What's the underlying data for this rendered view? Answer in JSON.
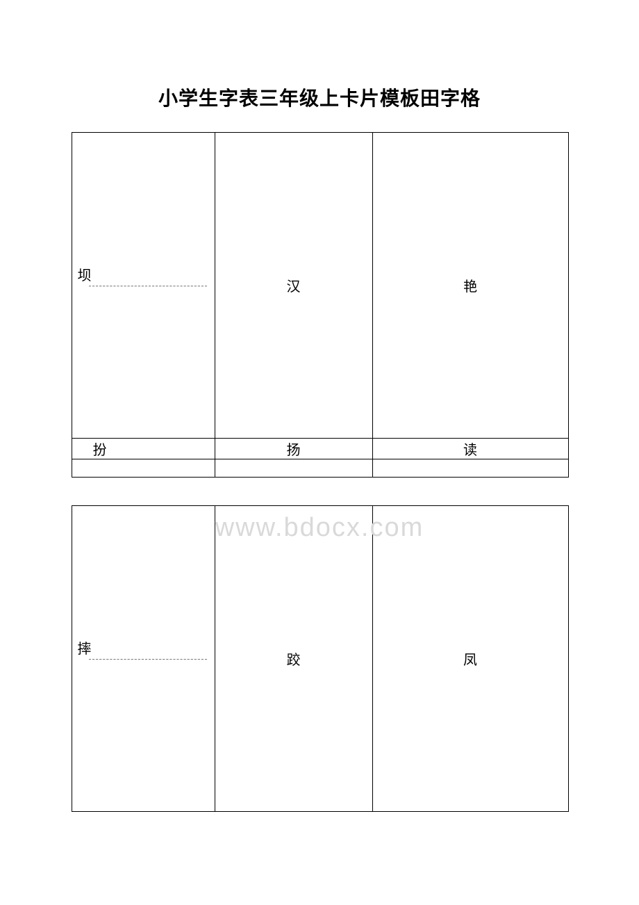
{
  "title": "小学生字表三年级上卡片模板田字格",
  "watermark": "www.bdocx.com",
  "table1": {
    "row1": {
      "c1_label": "坝",
      "c2": "汉",
      "c3": "艳"
    },
    "row2": {
      "c1": "扮",
      "c2": "扬",
      "c3": "读"
    }
  },
  "table2": {
    "row1": {
      "c1_label": "摔",
      "c2": "跤",
      "c3": "凤"
    }
  },
  "colors": {
    "text": "#000000",
    "border": "#000000",
    "dash": "#777777",
    "watermark": "#d9d9d9",
    "background": "#ffffff"
  }
}
